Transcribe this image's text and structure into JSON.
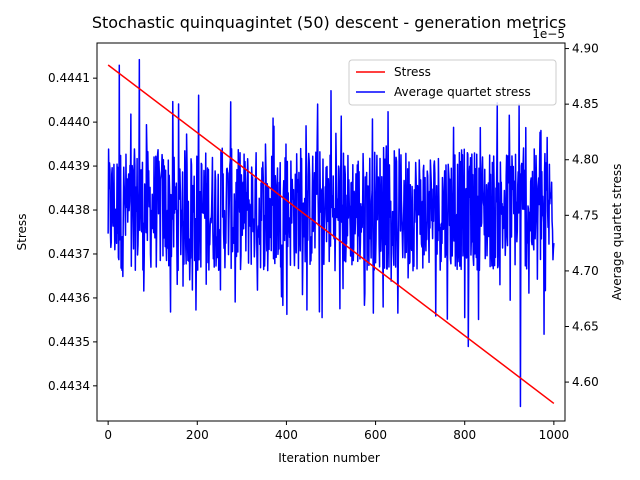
{
  "chart_data": {
    "type": "line",
    "title": "Stochastic quinquagintet (50) descent - generation metrics",
    "xlabel": "Iteration number",
    "ylabel_left": "Stress",
    "ylabel_right": "Average quartet stress",
    "right_axis_multiplier": "1e−5",
    "xlim": [
      -25,
      1025
    ],
    "ylim_left": [
      0.44332,
      0.44418
    ],
    "ylim_right": [
      4.565,
      4.905
    ],
    "x_ticks": [
      0,
      200,
      400,
      600,
      800,
      1000
    ],
    "x_tick_labels": [
      "0",
      "200",
      "400",
      "600",
      "800",
      "1000"
    ],
    "y_left_ticks": [
      0.4434,
      0.4435,
      0.4436,
      0.4437,
      0.4438,
      0.4439,
      0.444,
      0.4441
    ],
    "y_left_tick_labels": [
      "0.4434",
      "0.4435",
      "0.4436",
      "0.4437",
      "0.4438",
      "0.4439",
      "0.4440",
      "0.4441"
    ],
    "y_right_ticks": [
      4.6,
      4.65,
      4.7,
      4.75,
      4.8,
      4.85,
      4.9
    ],
    "y_right_tick_labels": [
      "4.60",
      "4.65",
      "4.70",
      "4.75",
      "4.80",
      "4.85",
      "4.90"
    ],
    "grid": false,
    "legend_position": "top-right",
    "series": [
      {
        "name": "Stress",
        "color": "#ff0000",
        "axis": "left",
        "x": [
          0,
          1000
        ],
        "y": [
          0.44413,
          0.44336
        ]
      },
      {
        "name": "Average quartet stress",
        "color": "#0000ff",
        "axis": "right",
        "generated": true,
        "x_range": [
          0,
          1000
        ],
        "baseline": 4.755,
        "upper_bound": 4.9,
        "lower_bound": 4.578,
        "spikes": [
          {
            "x": 25,
            "y": 4.885
          },
          {
            "x": 33,
            "y": 4.695
          },
          {
            "x": 70,
            "y": 4.89
          },
          {
            "x": 140,
            "y": 4.663
          },
          {
            "x": 203,
            "y": 4.858
          },
          {
            "x": 220,
            "y": 4.688
          },
          {
            "x": 275,
            "y": 4.852
          },
          {
            "x": 285,
            "y": 4.672
          },
          {
            "x": 470,
            "y": 4.85
          },
          {
            "x": 480,
            "y": 4.658
          },
          {
            "x": 500,
            "y": 4.862
          },
          {
            "x": 520,
            "y": 4.666
          },
          {
            "x": 595,
            "y": 4.662
          },
          {
            "x": 650,
            "y": 4.662
          },
          {
            "x": 800,
            "y": 4.658
          },
          {
            "x": 808,
            "y": 4.632
          },
          {
            "x": 900,
            "y": 4.84
          },
          {
            "x": 922,
            "y": 4.85
          },
          {
            "x": 925,
            "y": 4.578
          },
          {
            "x": 978,
            "y": 4.643
          },
          {
            "x": 985,
            "y": 4.82
          }
        ]
      }
    ]
  }
}
